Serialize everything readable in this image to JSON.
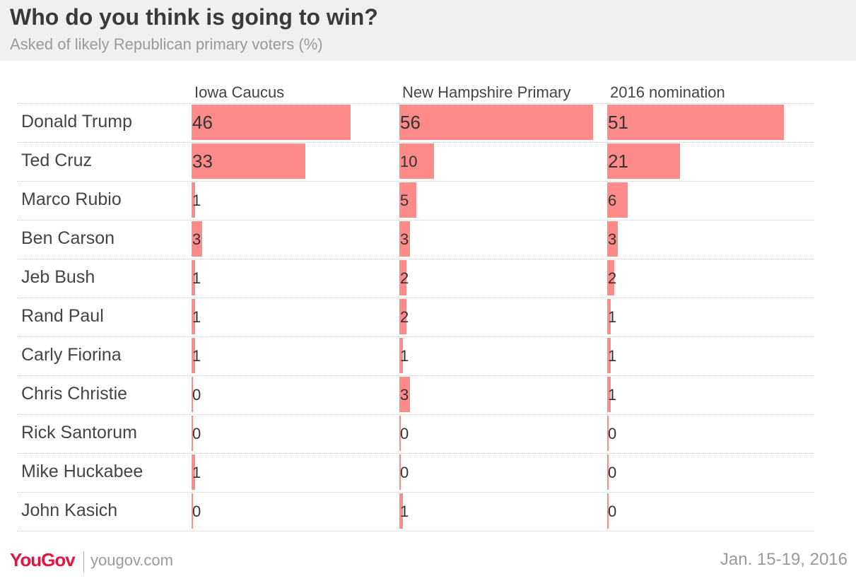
{
  "title": "Who do you think is going to win?",
  "subtitle": "Asked of likely Republican primary voters (%)",
  "colors": {
    "bar": "#ff8a8a",
    "brand": "#e5133e"
  },
  "footer": {
    "logo": "YouGov",
    "site": "yougov.com",
    "date": "Jan. 15-19, 2016"
  },
  "chart_data": {
    "type": "bar",
    "orientation": "horizontal",
    "categories": [
      "Donald Trump",
      "Ted Cruz",
      "Marco Rubio",
      "Ben Carson",
      "Jeb Bush",
      "Rand Paul",
      "Carly Fiorina",
      "Chris Christie",
      "Rick Santorum",
      "Mike Huckabee",
      "John Kasich"
    ],
    "series": [
      {
        "name": "Iowa Caucus",
        "values": [
          46,
          33,
          1,
          3,
          1,
          1,
          1,
          0,
          0,
          1,
          0
        ]
      },
      {
        "name": "New Hampshire Primary",
        "values": [
          56,
          10,
          5,
          3,
          2,
          2,
          1,
          3,
          0,
          0,
          1
        ]
      },
      {
        "name": "2016 nomination",
        "values": [
          51,
          21,
          6,
          3,
          2,
          1,
          1,
          1,
          0,
          0,
          0
        ]
      }
    ],
    "unit": "%",
    "xlim": [
      0,
      56
    ],
    "grid": true
  }
}
